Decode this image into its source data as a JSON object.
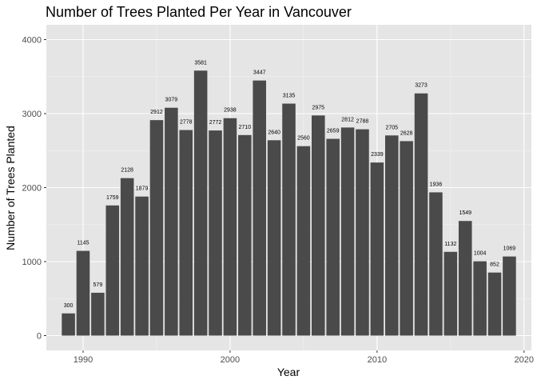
{
  "chart_data": {
    "type": "bar",
    "title": "Number of Trees Planted Per Year in Vancouver",
    "xlabel": "Year",
    "ylabel": "Number of Trees Planted",
    "x": [
      1989,
      1990,
      1991,
      1992,
      1993,
      1994,
      1995,
      1996,
      1997,
      1998,
      1999,
      2000,
      2001,
      2002,
      2003,
      2004,
      2005,
      2006,
      2007,
      2008,
      2009,
      2010,
      2011,
      2012,
      2013,
      2014,
      2015,
      2016,
      2017,
      2018,
      2019
    ],
    "values": [
      300,
      1145,
      579,
      1759,
      2128,
      1879,
      2912,
      3079,
      2778,
      3581,
      2772,
      2938,
      2710,
      3447,
      2640,
      3135,
      2560,
      2975,
      2659,
      2812,
      2788,
      2339,
      2705,
      2628,
      3273,
      1936,
      1132,
      1549,
      1004,
      852,
      1069
    ],
    "value_labels": [
      "300",
      "1145",
      "579",
      "1759",
      "2128",
      "1879",
      "2912",
      "3079",
      "2778",
      "3581",
      "2772",
      "2938",
      "2710",
      "3447",
      "2640",
      "3135",
      "2560",
      "2975",
      "2659",
      "2812",
      "2788",
      "2339",
      "2705",
      "2628",
      "3273",
      "1936",
      "1132",
      "1549",
      "1004",
      "852",
      "1069"
    ],
    "xlim": [
      1987.5,
      2020.5
    ],
    "ylim": [
      -200,
      4200
    ],
    "x_ticks": [
      1990,
      2000,
      2010,
      2020
    ],
    "x_tick_labels": [
      "1990",
      "2000",
      "2010",
      "2020"
    ],
    "y_ticks": [
      0,
      1000,
      2000,
      3000,
      4000
    ],
    "y_tick_labels": [
      "0",
      "1000",
      "2000",
      "3000",
      "4000"
    ],
    "grid": true,
    "legend": "none",
    "colors": {
      "bar": "#4a4a4a",
      "panel_background": "#e5e5e5",
      "grid_major": "#ffffff",
      "grid_minor": "#f2f2f2"
    }
  }
}
